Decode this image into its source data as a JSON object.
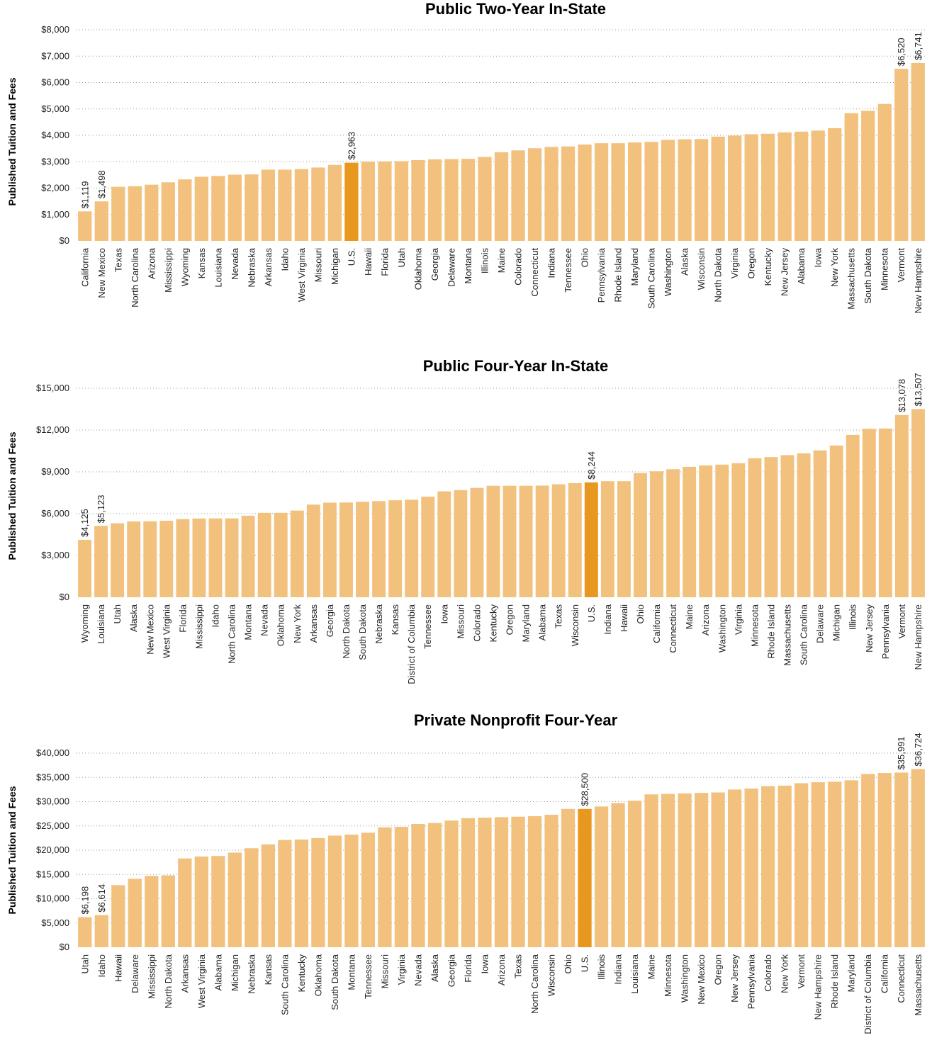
{
  "colors": {
    "bar": "#f3c17e",
    "highlight": "#e8971f",
    "grid": "#9a9a9a"
  },
  "chart_data": [
    {
      "type": "bar",
      "title": "Public Two-Year In-State",
      "ylabel": "Published Tuition and Fees",
      "ylim": [
        0,
        8000
      ],
      "yticks": [
        "$0",
        "$1,000",
        "$2,000",
        "$3,000",
        "$4,000",
        "$5,000",
        "$6,000",
        "$7,000",
        "$8,000"
      ],
      "grid": true,
      "highlight": "U.S.",
      "categories": [
        "California",
        "New Mexico",
        "Texas",
        "North Carolina",
        "Arizona",
        "Mississippi",
        "Wyoming",
        "Kansas",
        "Louisiana",
        "Nevada",
        "Nebraska",
        "Arkansas",
        "Idaho",
        "West Virginia",
        "Missouri",
        "Michigan",
        "U.S.",
        "Hawaii",
        "Florida",
        "Utah",
        "Oklahoma",
        "Georgia",
        "Delaware",
        "Montana",
        "Illinois",
        "Maine",
        "Colorado",
        "Connecticut",
        "Indiana",
        "Tennessee",
        "Ohio",
        "Pennsylvania",
        "Rhode Island",
        "Maryland",
        "South Carolina",
        "Washington",
        "Alaska",
        "Wisconsin",
        "North Dakota",
        "Virginia",
        "Oregon",
        "Kentucky",
        "New Jersey",
        "Alabama",
        "Iowa",
        "New York",
        "Massachusetts",
        "South Dakota",
        "Minnesota",
        "Vermont",
        "New Hampshire"
      ],
      "values": [
        1119,
        1498,
        2050,
        2070,
        2130,
        2220,
        2330,
        2430,
        2460,
        2510,
        2520,
        2700,
        2700,
        2720,
        2780,
        2880,
        2963,
        3000,
        3010,
        3020,
        3060,
        3090,
        3100,
        3110,
        3180,
        3360,
        3430,
        3510,
        3560,
        3580,
        3650,
        3700,
        3700,
        3730,
        3750,
        3830,
        3850,
        3860,
        3950,
        3990,
        4040,
        4060,
        4110,
        4140,
        4180,
        4270,
        4840,
        4930,
        5190,
        6520,
        6741
      ],
      "labels": {
        "California": "$1,119",
        "New Mexico": "$1,498",
        "U.S.": "$2,963",
        "Vermont": "$6,520",
        "New Hampshire": "$6,741"
      }
    },
    {
      "type": "bar",
      "title": "Public Four-Year In-State",
      "ylabel": "Published Tuition and Fees",
      "ylim": [
        0,
        15000
      ],
      "yticks": [
        "$0",
        "$3,000",
        "$6,000",
        "$9,000",
        "$12,000",
        "$15,000"
      ],
      "grid": true,
      "highlight": "U.S.",
      "categories": [
        "Wyoming",
        "Louisiana",
        "Utah",
        "Alaska",
        "New Mexico",
        "West Virginia",
        "Florida",
        "Mississippi",
        "Idaho",
        "North Carolina",
        "Montana",
        "Nevada",
        "Oklahoma",
        "New York",
        "Arkansas",
        "Georgia",
        "North Dakota",
        "South Dakota",
        "Nebraska",
        "Kansas",
        "District of Columbia",
        "Tennessee",
        "Iowa",
        "Missouri",
        "Colorado",
        "Kentucky",
        "Oregon",
        "Maryland",
        "Alabama",
        "Texas",
        "Wisconsin",
        "U.S.",
        "Indiana",
        "Hawaii",
        "Ohio",
        "California",
        "Connecticut",
        "Maine",
        "Arizona",
        "Washington",
        "Virginia",
        "Minnesota",
        "Rhode Island",
        "Massachusetts",
        "South Carolina",
        "Delaware",
        "Michigan",
        "Illinois",
        "New Jersey",
        "Pennsylvania",
        "Vermont",
        "New Hampshire"
      ],
      "values": [
        4125,
        5123,
        5310,
        5440,
        5450,
        5490,
        5610,
        5650,
        5660,
        5660,
        5850,
        6060,
        6060,
        6220,
        6650,
        6790,
        6800,
        6850,
        6900,
        6960,
        7000,
        7220,
        7600,
        7690,
        7850,
        8000,
        8000,
        8000,
        8010,
        8110,
        8190,
        8244,
        8330,
        8330,
        8910,
        9040,
        9190,
        9360,
        9460,
        9520,
        9620,
        9980,
        10060,
        10200,
        10330,
        10540,
        10890,
        11650,
        12090,
        12110,
        13078,
        13507
      ],
      "labels": {
        "Wyoming": "$4,125",
        "Louisiana": "$5,123",
        "U.S.": "$8,244",
        "Vermont": "$13,078",
        "New Hampshire": "$13,507"
      }
    },
    {
      "type": "bar",
      "title": "Private Nonprofit Four-Year",
      "ylabel": "Published Tuition and Fees",
      "ylim": [
        0,
        40000
      ],
      "yticks": [
        "$0",
        "$5,000",
        "$10,000",
        "$15,000",
        "$20,000",
        "$25,000",
        "$30,000",
        "$35,000",
        "$40,000"
      ],
      "grid": true,
      "highlight": "U.S.",
      "categories": [
        "Utah",
        "Idaho",
        "Hawaii",
        "Delaware",
        "Mississippi",
        "North Dakota",
        "Arkansas",
        "West Virginia",
        "Alabama",
        "Michigan",
        "Nebraska",
        "Kansas",
        "South Carolina",
        "Kentucky",
        "Oklahoma",
        "South Dakota",
        "Montana",
        "Tennessee",
        "Missouri",
        "Virginia",
        "Nevada",
        "Alaska",
        "Georgia",
        "Florida",
        "Iowa",
        "Arizona",
        "Texas",
        "North Carolina",
        "Wisconsin",
        "Ohio",
        "U.S.",
        "Illinois",
        "Indiana",
        "Louisiana",
        "Maine",
        "Minnesota",
        "Washington",
        "New Mexico",
        "Oregon",
        "New Jersey",
        "Pennsylvania",
        "Colorado",
        "New York",
        "Vermont",
        "New Hampshire",
        "Rhode Island",
        "Maryland",
        "District of Columbia",
        "California",
        "Connecticut",
        "Massachusetts"
      ],
      "values": [
        6198,
        6614,
        12800,
        14100,
        14700,
        14800,
        18300,
        18700,
        18800,
        19500,
        20400,
        21200,
        22100,
        22200,
        22500,
        23000,
        23200,
        23600,
        24700,
        24800,
        25400,
        25600,
        26100,
        26600,
        26700,
        26800,
        26900,
        27000,
        27300,
        28500,
        28500,
        29000,
        29700,
        30200,
        31500,
        31600,
        31700,
        31800,
        31900,
        32500,
        32700,
        33200,
        33300,
        33800,
        34000,
        34100,
        34400,
        35700,
        35900,
        35991,
        36724
      ],
      "labels": {
        "Utah": "$6,198",
        "Idaho": "$6,614",
        "U.S.": "$28,500",
        "Connecticut": "$35,991",
        "Massachusetts": "$36,724"
      }
    }
  ]
}
